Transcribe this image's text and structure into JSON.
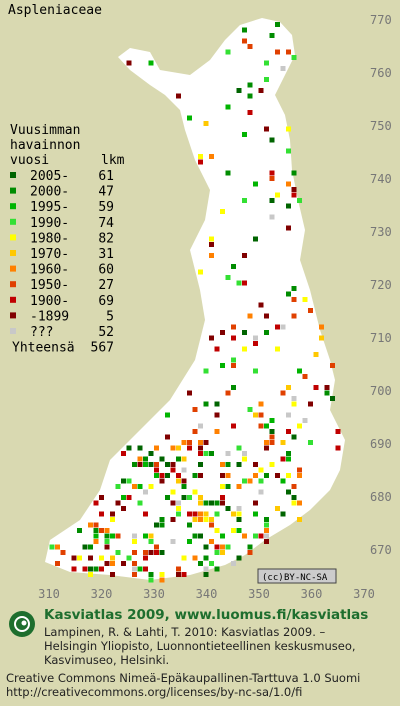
{
  "title": "Aspleniaceae",
  "legend": {
    "heading": [
      "Vuusimman",
      "havainnon"
    ],
    "col_label": "vuosi",
    "col_count": "lkm",
    "entries": [
      {
        "label": "2005-",
        "count": 61,
        "color": "#006400"
      },
      {
        "label": "2000-",
        "count": 47,
        "color": "#008c00"
      },
      {
        "label": "1995-",
        "count": 59,
        "color": "#00b400"
      },
      {
        "label": "1990-",
        "count": 74,
        "color": "#33e033"
      },
      {
        "label": "1980-",
        "count": 82,
        "color": "#ffff00"
      },
      {
        "label": "1970-",
        "count": 31,
        "color": "#ffc800"
      },
      {
        "label": "1960-",
        "count": 60,
        "color": "#ff8000"
      },
      {
        "label": "1950-",
        "count": 27,
        "color": "#e04000"
      },
      {
        "label": "1900-",
        "count": 69,
        "color": "#c00000"
      },
      {
        "label": "-1899",
        "count": 5,
        "color": "#800000"
      },
      {
        "label": "???",
        "count": 52,
        "color": "#c8c8c8"
      }
    ],
    "total_label": "Yhteensä",
    "total": 567
  },
  "yticks": [
    670,
    680,
    690,
    700,
    710,
    720,
    730,
    740,
    750,
    760,
    770
  ],
  "xticks": [
    310,
    320,
    330,
    340,
    350,
    360,
    370
  ],
  "license_badge": "BY-NC-SA",
  "footer": {
    "brand": "Kasviatlas 2009, www.luomus.fi/kasviatlas",
    "citation": [
      "Lampinen, R. & Lahti, T. 2010: Kasviatlas 2009. –",
      "Helsingin Yliopisto, Luonnontieteellinen keskusmuseo,",
      "Kasvimuseo, Helsinki."
    ],
    "license": [
      "Creative Commons Nimeä-Epäkaupallinen-Tarttuva 1.0 Suomi",
      "http://creativecommons.org/licenses/by-nc-sa/1.0/fi"
    ]
  }
}
